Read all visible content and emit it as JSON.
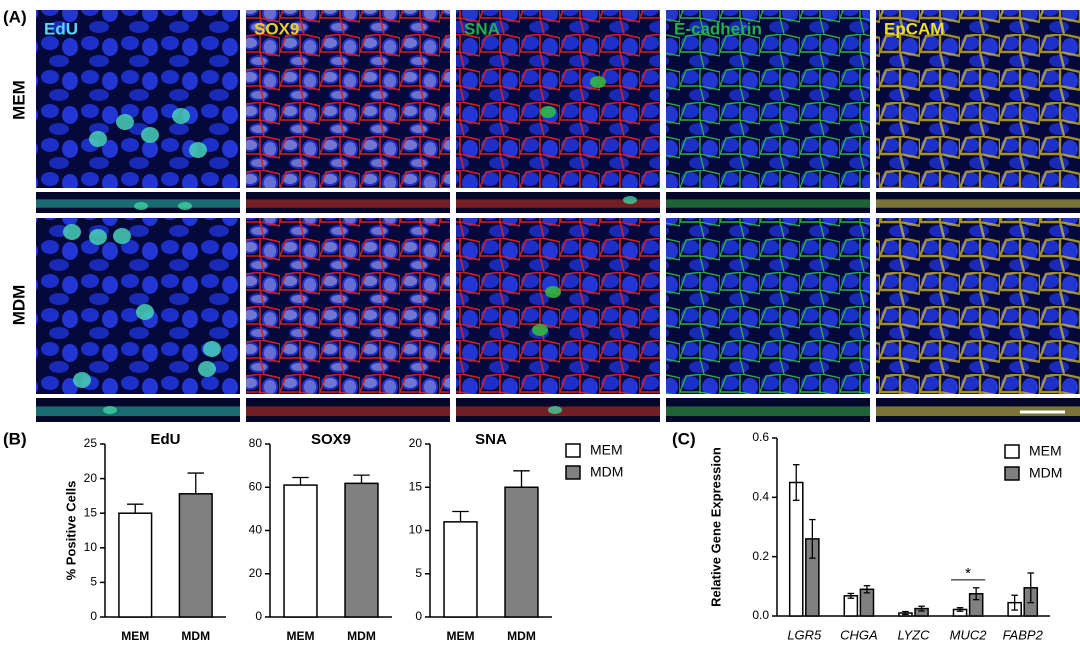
{
  "figure": {
    "panel_labels": [
      "(A)",
      "(B)",
      "(C)"
    ],
    "channels": [
      "EdU",
      "SOX9",
      "SNA",
      "E-cadherin",
      "EpCAM"
    ],
    "conditions": [
      "MEM",
      "MDM"
    ]
  },
  "chart_data": [
    {
      "type": "bar",
      "title": "EdU",
      "ylabel": "% Positive Cells",
      "categories": [
        "MEM",
        "MDM"
      ],
      "values": [
        15,
        17.8
      ],
      "errors": [
        1.3,
        3
      ],
      "colors": [
        "#ffffff",
        "#808080"
      ],
      "error_bars": "up",
      "ylim": [
        0,
        25
      ],
      "yticks": [
        0,
        5,
        10,
        15,
        20,
        25
      ]
    },
    {
      "type": "bar",
      "title": "SOX9",
      "categories": [
        "MEM",
        "MDM"
      ],
      "values": [
        61,
        61.8
      ],
      "errors": [
        3.5,
        3.8
      ],
      "colors": [
        "#ffffff",
        "#808080"
      ],
      "error_bars": "up",
      "ylim": [
        0,
        80
      ],
      "yticks": [
        0,
        20,
        40,
        60,
        80
      ]
    },
    {
      "type": "bar",
      "title": "SNA",
      "categories": [
        "MEM",
        "MDM"
      ],
      "values": [
        11,
        15
      ],
      "errors": [
        1.2,
        1.9
      ],
      "colors": [
        "#ffffff",
        "#808080"
      ],
      "error_bars": "up",
      "ylim": [
        0,
        20
      ],
      "yticks": [
        0,
        5,
        10,
        15,
        20
      ],
      "legend": "right"
    },
    {
      "type": "bar",
      "ylabel": "Relative Gene Expression",
      "categories": [
        "LGR5",
        "CHGA",
        "LYZC",
        "MUC2",
        "FABP2"
      ],
      "category_style": "italic",
      "series": [
        {
          "name": "MEM",
          "color": "#ffffff",
          "values": [
            0.45,
            0.068,
            0.01,
            0.022,
            0.045
          ],
          "errors": [
            0.06,
            0.008,
            0.005,
            0.006,
            0.025
          ]
        },
        {
          "name": "MDM",
          "color": "#808080",
          "values": [
            0.26,
            0.09,
            0.025,
            0.075,
            0.095
          ],
          "errors": [
            0.065,
            0.012,
            0.008,
            0.02,
            0.05
          ]
        }
      ],
      "error_bars": "both",
      "ylim": [
        0,
        0.6
      ],
      "yticks": [
        {
          "value": 0,
          "label": "0.0"
        },
        0.2,
        0.4,
        0.6
      ],
      "legend": "top-right",
      "annotations": [
        {
          "label": "*",
          "category": "MUC2"
        }
      ]
    }
  ]
}
